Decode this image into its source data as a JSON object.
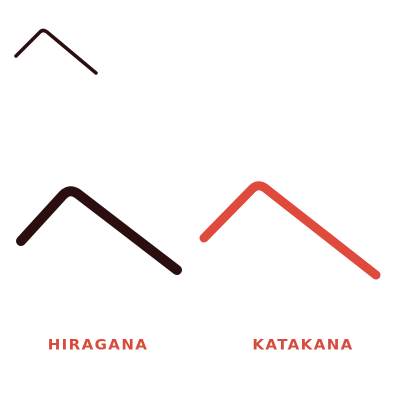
{
  "character": {
    "name": "he",
    "preview_color": "#2b0e10"
  },
  "scripts": [
    {
      "id": "hiragana",
      "label": "HIRAGANA",
      "stroke_color": "#2b0e10",
      "label_color": "#d84a3c"
    },
    {
      "id": "katakana",
      "label": "KATAKANA",
      "stroke_color": "#df4a3c",
      "label_color": "#d84a3c"
    }
  ]
}
